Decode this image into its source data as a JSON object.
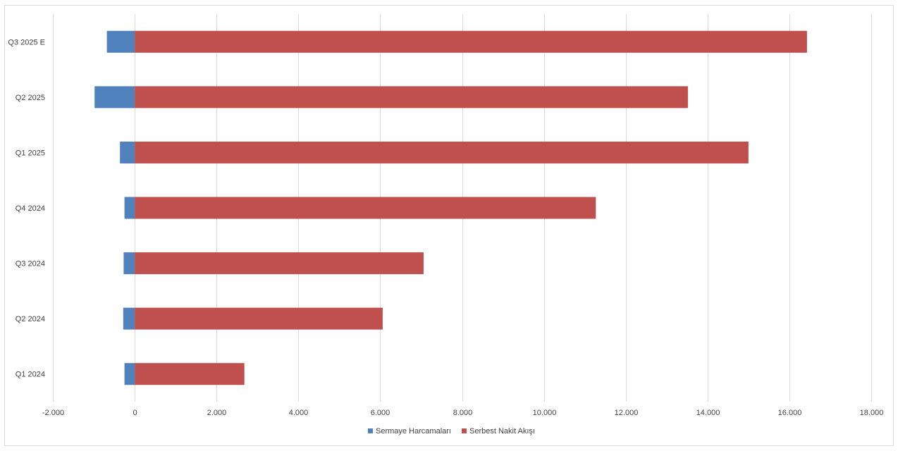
{
  "chart_data": {
    "type": "bar",
    "orientation": "horizontal",
    "stacked": true,
    "categories": [
      "Q1 2024",
      "Q2 2024",
      "Q3 2024",
      "Q4 2024",
      "Q1 2025",
      "Q2 2025",
      "Q3 2025 E"
    ],
    "series": [
      {
        "name": "Sermaye Harcamaları",
        "color": "#4f81bd",
        "values": [
          -250,
          -280,
          -270,
          -250,
          -360,
          -980,
          -680
        ]
      },
      {
        "name": "Serbest Nakit Akışı",
        "color": "#c0504d",
        "values": [
          2680,
          6060,
          7060,
          11270,
          15000,
          13520,
          16430
        ]
      }
    ],
    "xlim": [
      -2000,
      18000
    ],
    "xticks": [
      -2000,
      0,
      2000,
      4000,
      6000,
      8000,
      10000,
      12000,
      14000,
      16000,
      18000
    ],
    "xtick_labels": [
      "-2.000",
      "0",
      "2.000",
      "4.000",
      "6.000",
      "8.000",
      "10.000",
      "12.000",
      "14.000",
      "16.000",
      "18.000"
    ],
    "grid": "vertical",
    "legend_position": "bottom",
    "title": "",
    "xlabel": "",
    "ylabel": ""
  }
}
